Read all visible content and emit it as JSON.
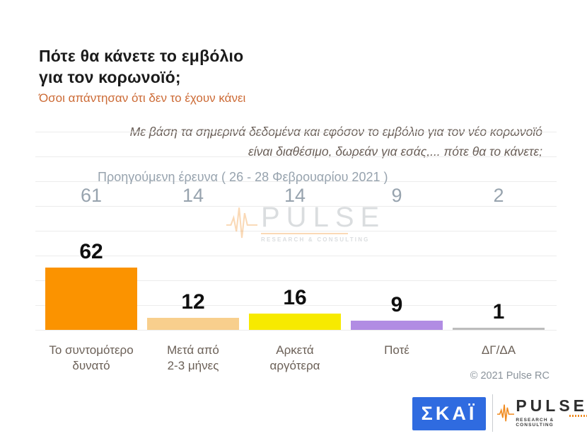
{
  "header": {
    "title": "Πότε θα κάνετε το εμβόλιο\nγια τον κορωνοϊό;",
    "subtitle": "Όσοι απάντησαν ότι δεν το έχουν κάνει"
  },
  "question": "Με βάση τα σημερινά δεδομένα και εφόσον το εμβόλιο για τον νέο κορωνοϊό\nείναι διαθέσιμο, δωρεάν για εσάς,... πότε θα το κάνετε;",
  "chart_data": {
    "type": "bar",
    "categories": [
      "Το συντομότερο\nδυνατό",
      "Μετά από\n2-3 μήνες",
      "Αρκετά\nαργότερα",
      "Ποτέ",
      "ΔΓ/ΔΑ"
    ],
    "values": [
      62,
      12,
      16,
      9,
      1
    ],
    "bar_colors": [
      "#FB9300",
      "#F8CF8D",
      "#F7EA00",
      "#B18CE3",
      "#BDBDBD"
    ],
    "previous_survey": {
      "label": "Προηγούμενη έρευνα ( 26 - 28  Φεβρουαρίου  2021 )",
      "values": [
        61,
        14,
        14,
        9,
        2
      ]
    },
    "title": "Πότε θα κάνετε το εμβόλιο για τον κορωνοϊό;",
    "xlabel": "",
    "ylabel": "",
    "ylim": [
      0,
      70
    ],
    "grid": true,
    "legend": "none",
    "value_labels_shown": true
  },
  "watermark": {
    "brand": "PULSE",
    "tagline": "RESEARCH & CONSULTING"
  },
  "footer": {
    "copyright": "© 2021 Pulse RC",
    "skai_logo": "ΣΚΑΪ",
    "pulse_logo": "PULSE",
    "pulse_tagline": "RESEARCH & CONSULTING"
  },
  "colors": {
    "subtitle_orange": "#CC6A35",
    "question_taupe": "#6A5F58",
    "previous_survey_gray": "#97A3AE",
    "skai_blue": "#2F6BE0",
    "pulse_orange": "#F08A1E",
    "value_label_black": "#0F0F0F"
  }
}
